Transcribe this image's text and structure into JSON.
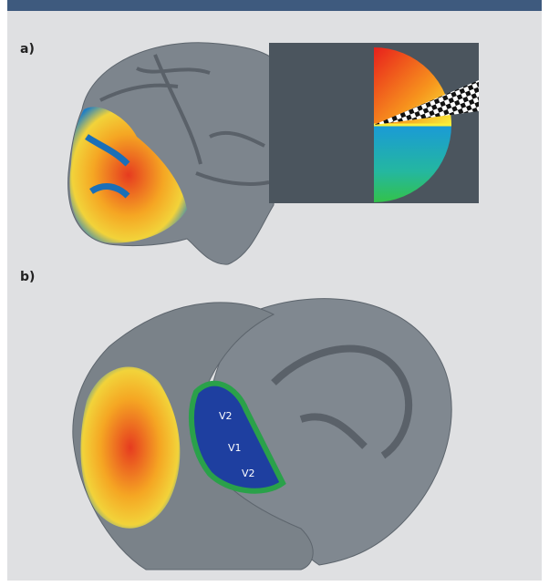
{
  "panels": [
    {
      "label": "a)"
    },
    {
      "label": "b)",
      "areas": [
        "V2",
        "V1",
        "V2"
      ]
    }
  ]
}
